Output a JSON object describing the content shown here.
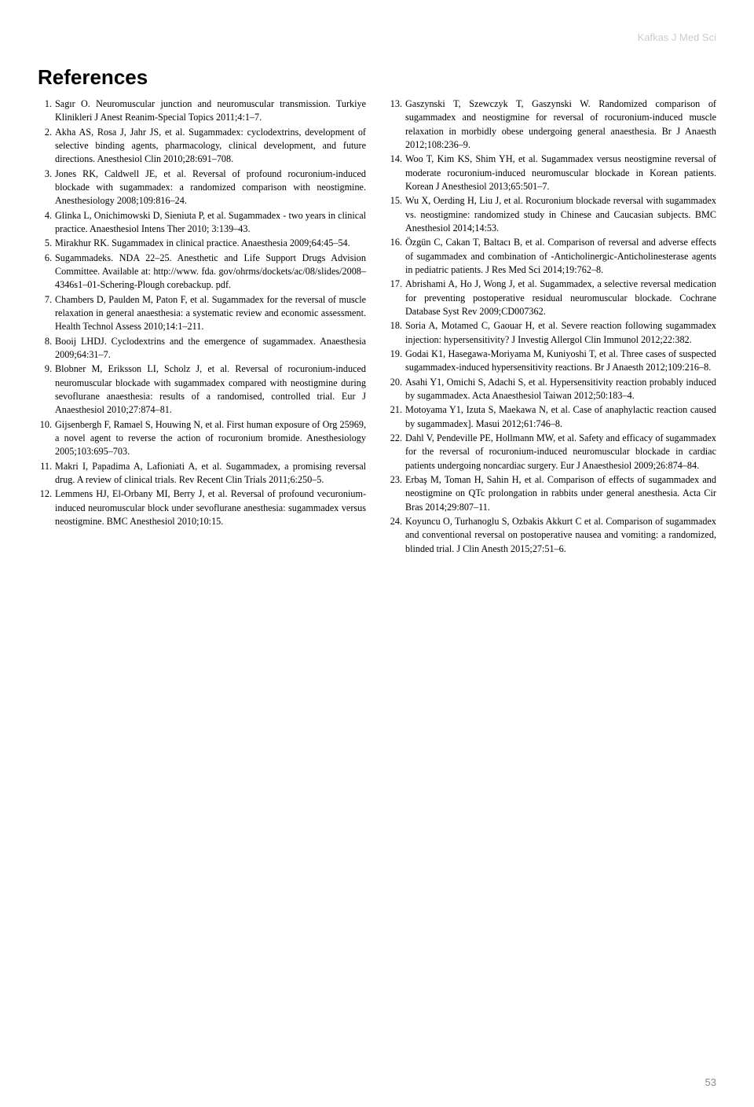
{
  "journal": "Kafkas J Med Sci",
  "section_title": "References",
  "page_number": "53",
  "refs_left": [
    "Sagır O. Neuromuscular junction and neuromuscular transmission. Turkiye Klinikleri J Anest Reanim-Special Topics 2011;4:1–7.",
    "Akha AS, Rosa J, Jahr JS, et al. Sugammadex: cyclodextrins, development of selective binding agents, pharmacology, clinical development, and future directions. Anesthesiol Clin 2010;28:691–708.",
    "Jones RK, Caldwell JE, et al. Reversal of profound rocuronium-induced blockade with sugammadex: a randomized comparison with neostigmine. Anesthesiology 2008;109:816–24.",
    "Glinka L, Onichimowski D, Sieniuta P, et al. Sugammadex - two years in clinical practice. Anaesthesiol Intens Ther 2010; 3:139–43.",
    "Mirakhur RK. Sugammadex in clinical practice. Anaesthesia 2009;64:45–54.",
    "Sugammadeks. NDA 22–25. Anesthetic and Life Support Drugs Advision Committee. Available at: http://www. fda. gov/ohrms/dockets/ac/08/slides/2008–4346s1–01-Schering-Plough corebackup. pdf.",
    "Chambers D, Paulden M, Paton F, et al. Sugammadex for the reversal of muscle relaxation in general anaesthesia: a systematic review and economic assessment. Health Technol Assess 2010;14:1–211.",
    "Booij LHDJ. Cyclodextrins and the emergence of sugammadex. Anaesthesia 2009;64:31–7.",
    "Blobner M, Eriksson LI, Scholz J, et al. Reversal of rocuronium-induced neuromuscular blockade with sugammadex compared with neostigmine during sevoflurane anaesthesia: results of a randomised, controlled trial. Eur J Anaesthesiol 2010;27:874–81.",
    "Gijsenbergh F, Ramael S, Houwing N, et al. First human exposure of Org 25969, a novel agent to reverse the action of rocuronium bromide. Anesthesiology 2005;103:695–703.",
    "Makri I, Papadima A, Lafioniati A, et al. Sugammadex, a promising reversal drug. A review of clinical trials. Rev Recent Clin Trials 2011;6:250–5.",
    "Lemmens HJ, El-Orbany MI, Berry J, et al. Reversal of profound vecuronium-induced neuromuscular block under sevoflurane anesthesia: sugammadex versus neostigmine. BMC Anesthesiol 2010;10:15."
  ],
  "refs_right": [
    "Gaszynski T, Szewczyk T, Gaszynski W. Randomized comparison of sugammadex and neostigmine for reversal of rocuronium-induced muscle relaxation in morbidly obese undergoing general anaesthesia. Br J Anaesth 2012;108:236–9.",
    "Woo T, Kim KS, Shim YH, et al. Sugammadex versus neostigmine reversal of moderate rocuronium-induced neuromuscular blockade in Korean patients. Korean J Anesthesiol 2013;65:501–7.",
    "Wu X, Oerding H, Liu J, et al. Rocuronium blockade reversal with sugammadex vs. neostigmine: randomized study in Chinese and Caucasian subjects. BMC Anesthesiol 2014;14:53.",
    "Özgün C, Cakan T, Baltacı B, et al. Comparison of reversal and adverse effects of sugammadex and combination of -Anticholinergic-Anticholinesterase agents in pediatric patients. J Res Med Sci 2014;19:762–8.",
    "Abrishami A, Ho J, Wong J, et al. Sugammadex, a selective reversal medication for preventing postoperative residual neuromuscular blockade. Cochrane Database Syst Rev 2009;CD007362.",
    "Soria A, Motamed C, Gaouar H, et al. Severe reaction following sugammadex injection: hypersensitivity? J Investig Allergol Clin Immunol 2012;22:382.",
    "Godai K1, Hasegawa-Moriyama M, Kuniyoshi T, et al. Three cases of suspected sugammadex-induced hypersensitivity reactions. Br J Anaesth 2012;109:216–8.",
    "Asahi Y1, Omichi S, Adachi S, et al. Hypersensitivity reaction probably induced by sugammadex. Acta Anaesthesiol Taiwan 2012;50:183–4.",
    "Motoyama Y1, Izuta S, Maekawa N, et al. Case of anaphylactic reaction caused by sugammadex]. Masui 2012;61:746–8.",
    "Dahl V, Pendeville PE, Hollmann MW, et al. Safety and efficacy of sugammadex for the reversal of rocuronium-induced neuromuscular blockade in cardiac patients undergoing noncardiac surgery. Eur J Anaesthesiol 2009;26:874–84.",
    "Erbaş M, Toman H, Sahin H, et al. Comparison of effects of sugammadex and neostigmine on QTc prolongation in rabbits under general anesthesia. Acta Cir Bras 2014;29:807–11.",
    "Koyuncu O, Turhanoglu S, Ozbakis Akkurt C et al. Comparison of sugammadex and conventional reversal on postoperative nausea and vomiting: a randomized, blinded trial. J Clin Anesth 2015;27:51–6."
  ]
}
